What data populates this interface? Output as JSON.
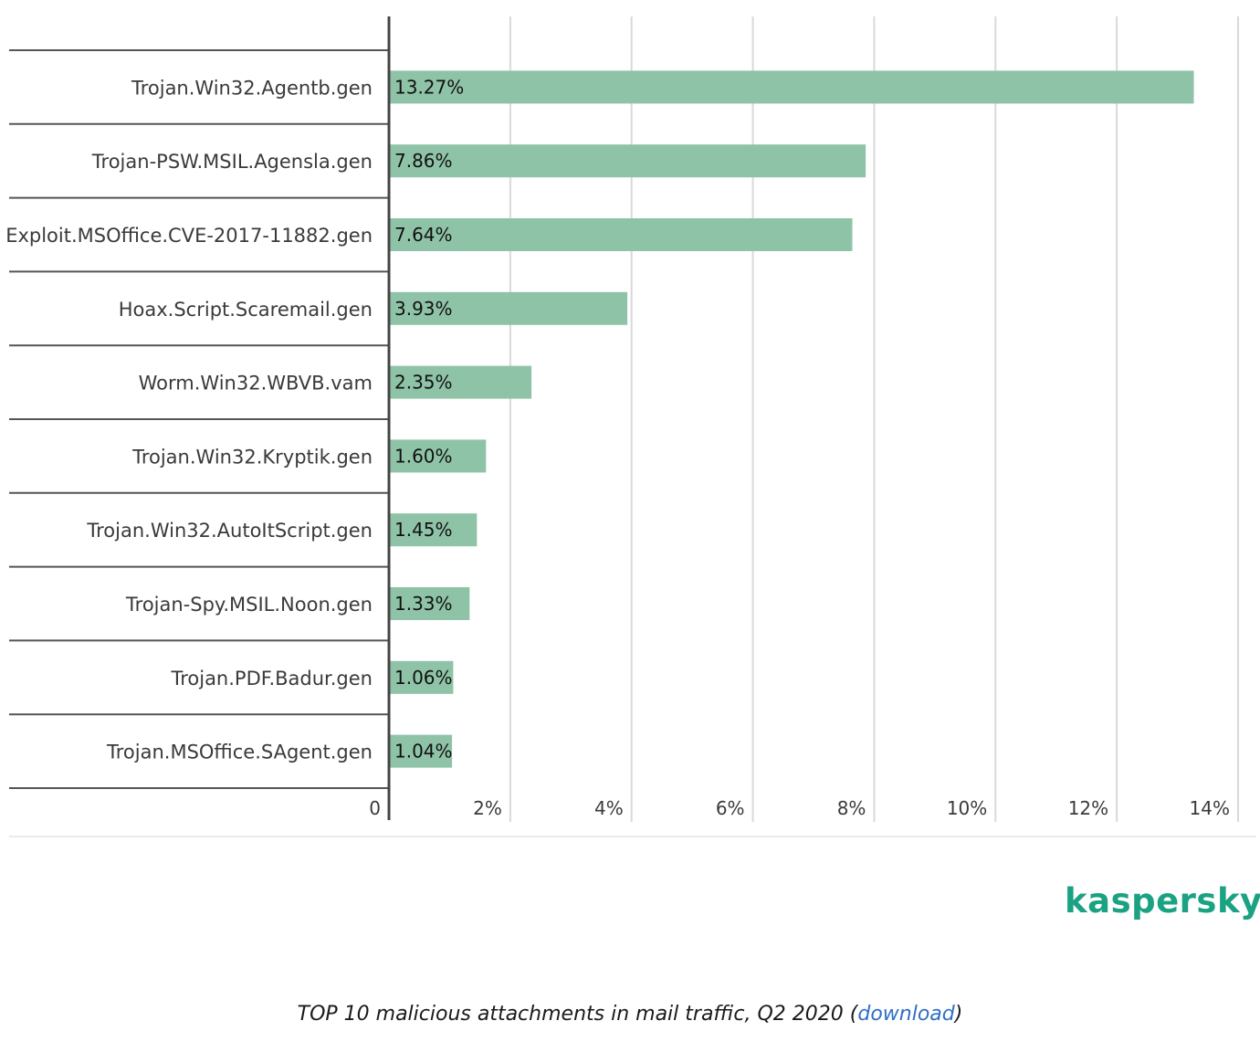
{
  "chart_data": {
    "type": "bar",
    "orientation": "horizontal",
    "categories": [
      "Trojan.Win32.Agentb.gen",
      "Trojan-PSW.MSIL.Agensla.gen",
      "Exploit.MSOffice.CVE-2017-11882.gen",
      "Hoax.Script.Scaremail.gen",
      "Worm.Win32.WBVB.vam",
      "Trojan.Win32.Kryptik.gen",
      "Trojan.Win32.AutoItScript.gen",
      "Trojan-Spy.MSIL.Noon.gen",
      "Trojan.PDF.Badur.gen",
      "Trojan.MSOffice.SAgent.gen"
    ],
    "values": [
      13.27,
      7.86,
      7.64,
      3.93,
      2.35,
      1.6,
      1.45,
      1.33,
      1.06,
      1.04
    ],
    "value_labels": [
      "13.27%",
      "7.86%",
      "7.64%",
      "3.93%",
      "2.35%",
      "1.60%",
      "1.45%",
      "1.33%",
      "1.06%",
      "1.04%"
    ],
    "xlim": [
      0,
      14
    ],
    "x_ticks": [
      0,
      2,
      4,
      6,
      8,
      10,
      12,
      14
    ],
    "x_tick_labels": [
      "0",
      "2%",
      "4%",
      "6%",
      "8%",
      "10%",
      "12%",
      "14%"
    ],
    "grid": true,
    "bar_color": "#8fc3a7"
  },
  "logo": {
    "text": "kaspersky",
    "color": "#1aa283"
  },
  "caption": {
    "text": "TOP 10 malicious attachments in mail traffic, Q2 2020 (",
    "link": "download",
    "suffix": ")",
    "link_color": "#2f6fc6"
  }
}
